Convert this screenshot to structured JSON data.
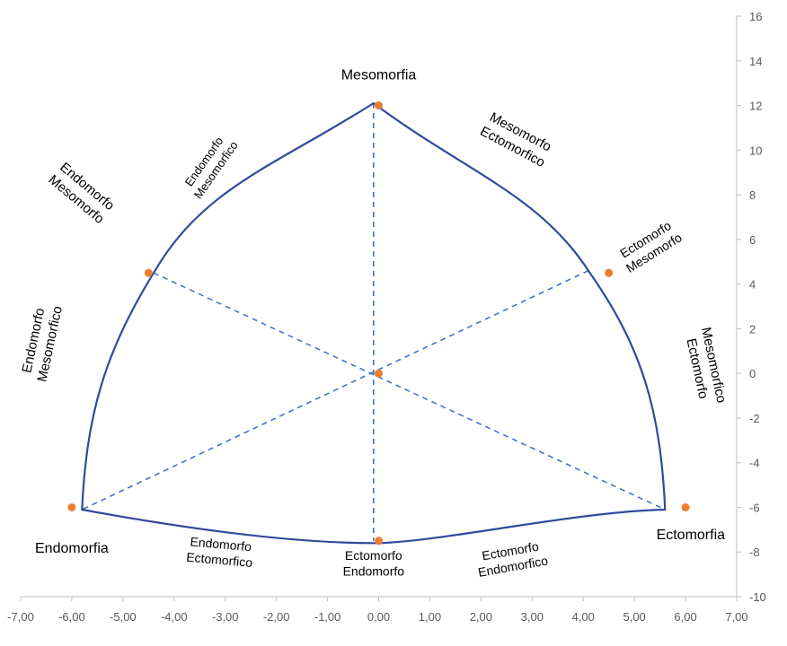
{
  "chart_data": {
    "type": "scatter",
    "title": "",
    "xlabel": "",
    "ylabel": "",
    "xlim": [
      -7,
      7
    ],
    "ylim": [
      -10,
      16
    ],
    "x_ticks": [
      -7,
      -6,
      -5,
      -4,
      -3,
      -2,
      -1,
      0,
      1,
      2,
      3,
      4,
      5,
      6,
      7
    ],
    "y_ticks": [
      -10,
      -8,
      -6,
      -4,
      -2,
      0,
      2,
      4,
      6,
      8,
      10,
      12,
      14,
      16
    ],
    "x_tick_labels": [
      "-7,00",
      "-6,00",
      "-5,00",
      "-4,00",
      "-3,00",
      "-2,00",
      "-1,00",
      "0,00",
      "1,00",
      "2,00",
      "3,00",
      "4,00",
      "5,00",
      "6,00",
      "7,00"
    ],
    "y_tick_labels": [
      "-10",
      "-8",
      "-6",
      "-4",
      "-2",
      "0",
      "2",
      "4",
      "6",
      "8",
      "10",
      "12",
      "14",
      "16"
    ],
    "y_axis_position": "right",
    "grid": false,
    "points": [
      {
        "x": 0,
        "y": 12
      },
      {
        "x": -4.5,
        "y": 4.5
      },
      {
        "x": 4.5,
        "y": 4.5
      },
      {
        "x": 0,
        "y": 0
      },
      {
        "x": -6,
        "y": -6
      },
      {
        "x": 6,
        "y": -6
      },
      {
        "x": 0,
        "y": -7.5
      }
    ],
    "point_color": "#ed7d31",
    "outline_color": "#2f4b9a",
    "dash_color": "#4472c4",
    "outline": {
      "top": [
        -0.1,
        12.1
      ],
      "left": [
        -5.8,
        -6.1
      ],
      "right": [
        5.6,
        -6.1
      ],
      "left_upper": [
        -4.4,
        4.5
      ],
      "right_upper": [
        4.1,
        4.6
      ]
    },
    "dashed_lines": [
      [
        [
          -0.1,
          12.1
        ],
        [
          -0.1,
          -7.5
        ]
      ],
      [
        [
          -4.4,
          4.5
        ],
        [
          5.6,
          -6.1
        ]
      ],
      [
        [
          4.1,
          4.6
        ],
        [
          -5.8,
          -6.1
        ]
      ]
    ],
    "labels": [
      {
        "lines": [
          "Mesomorfia"
        ],
        "x": 0.0,
        "y": 13.4,
        "size": 16,
        "rotate": 0
      },
      {
        "lines": [
          "Endomorfia"
        ],
        "x": -6.0,
        "y": -7.8,
        "size": 16,
        "rotate": 0
      },
      {
        "lines": [
          "Ectomorfia"
        ],
        "x": 6.1,
        "y": -7.2,
        "size": 16,
        "rotate": 0
      },
      {
        "lines": [
          "Endomorfo",
          "Mesomorfo"
        ],
        "x": -5.8,
        "y": 8.1,
        "size": 15,
        "rotate": 40
      },
      {
        "lines": [
          "Endomorfo",
          "Mesomorfico"
        ],
        "x": -3.3,
        "y": 9.3,
        "size": 13,
        "rotate": -55
      },
      {
        "lines": [
          "Mesomorfo",
          "Ectomorfico"
        ],
        "x": 2.7,
        "y": 10.5,
        "size": 15,
        "rotate": 28
      },
      {
        "lines": [
          "Ectomorfo",
          "Mesomorfo"
        ],
        "x": 5.3,
        "y": 5.7,
        "size": 14,
        "rotate": -32
      },
      {
        "lines": [
          "Endomorfo",
          "Mesomorfico"
        ],
        "x": -6.6,
        "y": 1.4,
        "size": 15,
        "rotate": -78
      },
      {
        "lines": [
          "Mesomorfico",
          "Ectomorfo"
        ],
        "x": 6.4,
        "y": 0.3,
        "size": 15,
        "rotate": 78
      },
      {
        "lines": [
          "Endomorfo",
          "Ectomorfico"
        ],
        "x": -3.1,
        "y": -8.0,
        "size": 14,
        "rotate": 5
      },
      {
        "lines": [
          "Ectomorfo",
          "Endomorfo"
        ],
        "x": -0.1,
        "y": -8.5,
        "size": 14,
        "rotate": 0
      },
      {
        "lines": [
          "Ectomorfo",
          "Endomorfico"
        ],
        "x": 2.6,
        "y": -8.3,
        "size": 14,
        "rotate": -10
      }
    ]
  }
}
